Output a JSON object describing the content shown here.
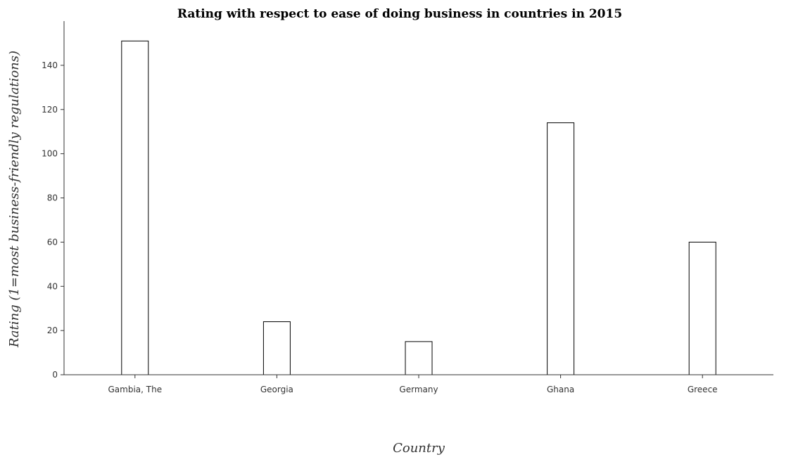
{
  "chart_data": {
    "type": "bar",
    "title": "Rating with respect to ease of doing business in countries in 2015",
    "xlabel": "Country",
    "ylabel": "Rating (1=most business-friendly regulations)",
    "categories": [
      "Gambia, The",
      "Georgia",
      "Germany",
      "Ghana",
      "Greece"
    ],
    "values": [
      151,
      24,
      15,
      114,
      60
    ],
    "ylim": [
      0,
      160
    ],
    "yticks": [
      0,
      20,
      40,
      60,
      80,
      100,
      120,
      140
    ],
    "grid": false,
    "legend": "none",
    "bar_color": "#ffffff",
    "bar_edge_color": "#000000"
  }
}
